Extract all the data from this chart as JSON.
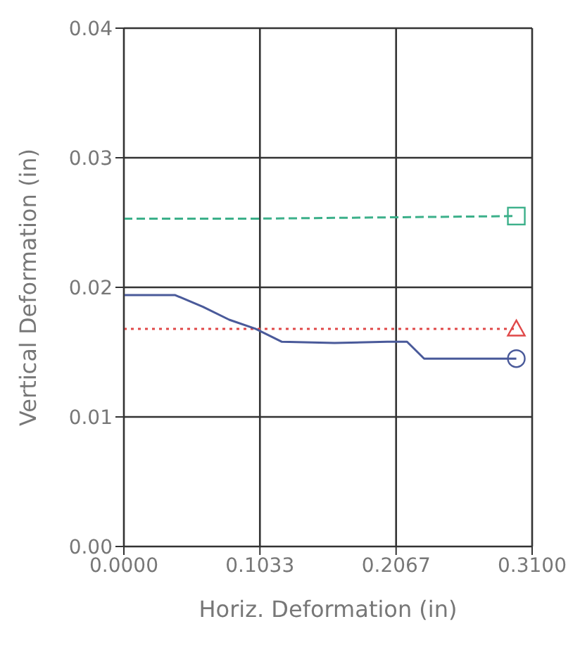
{
  "chart_data": {
    "type": "line",
    "xlabel": "Horiz. Deformation (in)",
    "ylabel": "Vertical Deformation (in)",
    "xlim": [
      0,
      0.31
    ],
    "ylim": [
      0,
      0.04
    ],
    "xticks": [
      {
        "value": 0,
        "label": "0.0000"
      },
      {
        "value": 0.1033,
        "label": "0.1033"
      },
      {
        "value": 0.2067,
        "label": "0.2067"
      },
      {
        "value": 0.31,
        "label": "0.3100"
      }
    ],
    "yticks": [
      {
        "value": 0,
        "label": "0.00"
      },
      {
        "value": 0.01,
        "label": "0.01"
      },
      {
        "value": 0.02,
        "label": "0.02"
      },
      {
        "value": 0.03,
        "label": "0.03"
      },
      {
        "value": 0.04,
        "label": "0.04"
      }
    ],
    "grid": true,
    "series": [
      {
        "color": "#3cb08a",
        "line_style": "dashed",
        "x": [
          0,
          0.1,
          0.2,
          0.298
        ],
        "values": [
          0.0253,
          0.0253,
          0.0254,
          0.0255
        ]
      },
      {
        "color": "#e04848",
        "line_style": "dotted",
        "x": [
          0,
          0.1,
          0.2,
          0.298
        ],
        "values": [
          0.0168,
          0.0168,
          0.0168,
          0.0168
        ]
      },
      {
        "color": "#4a5a9a",
        "line_style": "solid",
        "x": [
          0,
          0.039,
          0.06,
          0.08,
          0.1,
          0.12,
          0.16,
          0.2,
          0.215,
          0.228,
          0.26,
          0.298
        ],
        "values": [
          0.0194,
          0.0194,
          0.0185,
          0.0175,
          0.0168,
          0.0158,
          0.0157,
          0.0158,
          0.0158,
          0.0145,
          0.0145,
          0.0145
        ]
      },
      {
        "type": "scatter",
        "color": "#3cb08a",
        "marker": "square",
        "x": [
          0.298
        ],
        "values": [
          0.0255
        ]
      },
      {
        "type": "scatter",
        "color": "#e04848",
        "marker": "triangle",
        "x": [
          0.298
        ],
        "values": [
          0.0168
        ]
      },
      {
        "type": "scatter",
        "color": "#4a5a9a",
        "marker": "circle",
        "x": [
          0.298
        ],
        "values": [
          0.0145
        ]
      }
    ]
  }
}
